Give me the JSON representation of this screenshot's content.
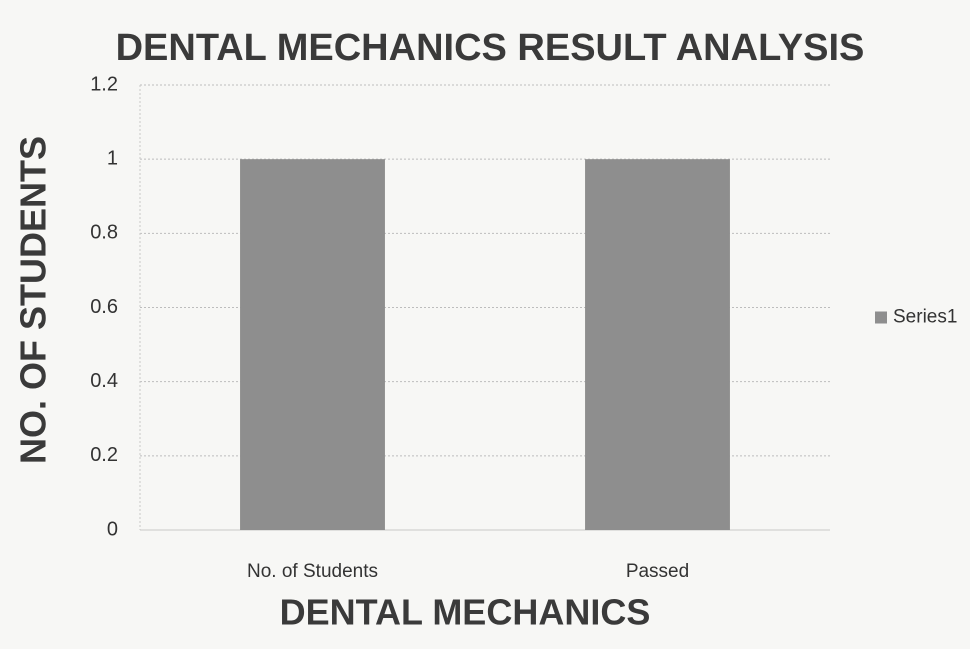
{
  "chart_data": {
    "type": "bar",
    "title": "DENTAL MECHANICS RESULT ANALYSIS",
    "x_label": "DENTAL MECHANICS",
    "y_label": "NO. OF STUDENTS",
    "categories": [
      "No. of Students",
      "Passed"
    ],
    "series": [
      {
        "name": "Series1",
        "color": "#8e8e8e",
        "values": [
          1,
          1
        ]
      }
    ],
    "ylim": [
      0,
      1.2
    ],
    "yticks": [
      0,
      0.2,
      0.4,
      0.6,
      0.8,
      1,
      1.2
    ],
    "grid": true,
    "legend": "right"
  }
}
